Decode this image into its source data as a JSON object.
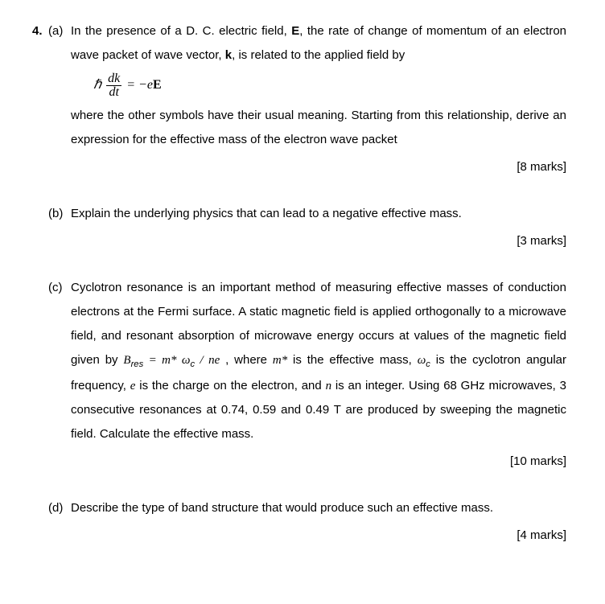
{
  "question_number": "4.",
  "parts": {
    "a": {
      "label": "(a)",
      "text1": "In the presence of a D. C. electric field, ",
      "E": "E",
      "text2": ", the rate of change of momentum of an electron wave packet of wave vector, ",
      "k": "k",
      "text3": ", is related to the applied field by",
      "eq_hbar": "ℏ",
      "eq_num": "dk",
      "eq_den": "dt",
      "eq_eq": " = −e",
      "eq_E": "E",
      "text4": "where the other symbols have their usual meaning. Starting from this relationship, derive an expression for the effective mass of the electron wave packet",
      "marks": "[8 marks]"
    },
    "b": {
      "label": "(b)",
      "text": "Explain the underlying physics that can lead to a negative effective mass.",
      "marks": "[3 marks]"
    },
    "c": {
      "label": "(c)",
      "text1": "Cyclotron resonance is an important method of measuring effective masses of conduction electrons at the Fermi surface. A static magnetic field is applied orthogonally to a microwave field, and resonant absorption of microwave energy occurs at values of the magnetic field given by ",
      "formula_B": "B",
      "formula_Bsub": "res",
      "formula_eq": " = m* ω",
      "formula_csub": "c",
      "formula_tail": " / ne",
      "text2": " , where ",
      "mstar": "m*",
      "text3": " is the effective mass, ",
      "omega": "ω",
      "omega_sub": "c",
      "text4": " is the cyclotron angular frequency, ",
      "e_sym": "e",
      "text5": " is the charge on the electron, and ",
      "n_sym": "n",
      "text6": " is an integer. Using 68 GHz microwaves, 3 consecutive resonances at 0.74, 0.59 and 0.49 T are produced by sweeping the magnetic field. Calculate the effective mass.",
      "marks": "[10 marks]"
    },
    "d": {
      "label": "(d)",
      "text": "Describe the type of band structure that would produce such an effective mass.",
      "marks": "[4 marks]"
    }
  }
}
